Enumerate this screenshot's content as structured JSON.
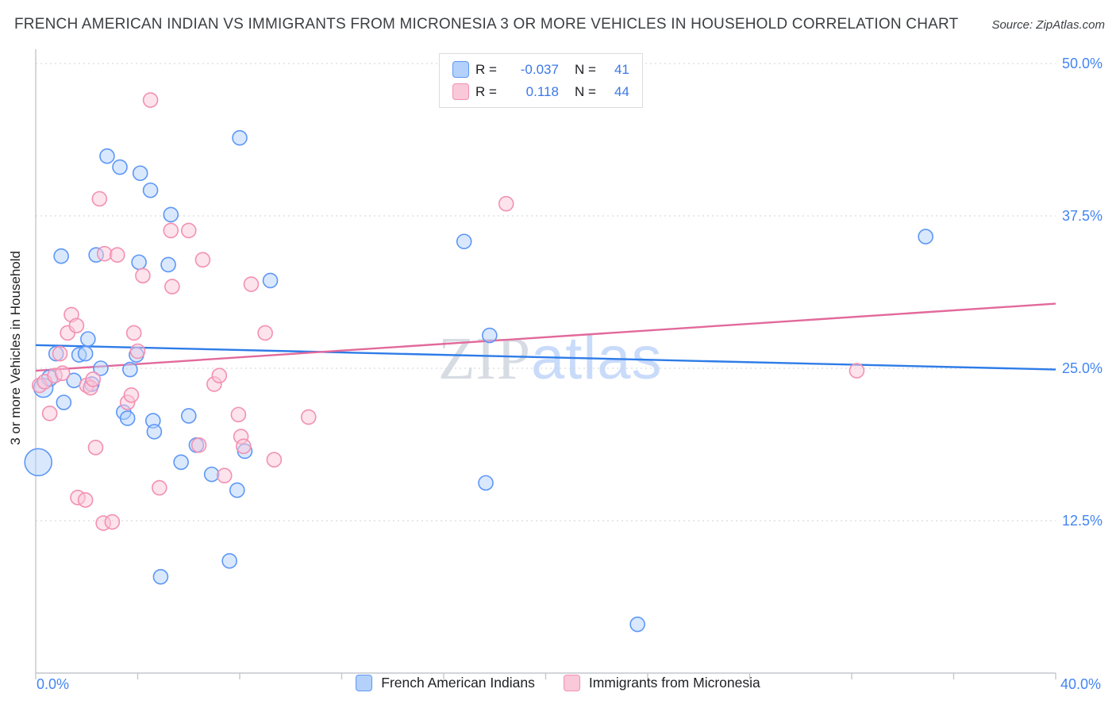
{
  "title": "FRENCH AMERICAN INDIAN VS IMMIGRANTS FROM MICRONESIA 3 OR MORE VEHICLES IN HOUSEHOLD CORRELATION CHART",
  "source": "Source: ZipAtlas.com",
  "watermark": {
    "zip": "ZIP",
    "atlas": "atlas"
  },
  "y_axis": {
    "label": "3 or more Vehicles in Household",
    "ticks": [
      "50.0%",
      "37.5%",
      "25.0%",
      "12.5%"
    ]
  },
  "x_axis": {
    "min_label": "0.0%",
    "max_label": "40.0%"
  },
  "legend_box": {
    "rows": [
      {
        "r_label": "R =",
        "r_value": "-0.037",
        "n_label": "N =",
        "n_value": "41"
      },
      {
        "r_label": "R =",
        "r_value": "0.118",
        "n_label": "N =",
        "n_value": "44"
      }
    ]
  },
  "bottom_legend": {
    "items": [
      {
        "label": "French American Indians"
      },
      {
        "label": "Immigrants from Micronesia"
      }
    ]
  },
  "colors": {
    "blue_fill": "#b3d1fb",
    "blue_stroke": "#5e97f6",
    "blue_line": "#2e7ce8",
    "pink_fill": "#f9c8d9",
    "pink_stroke": "#f291b2",
    "pink_line": "#e2699b",
    "tick_label": "#4285f4",
    "grid": "#cfd2d6",
    "axis": "#c4c7cb"
  },
  "chart_data": {
    "type": "scatter",
    "title": "French American Indian vs Immigrants from Micronesia 3 or More Vehicles in Household Correlation",
    "xlabel": "",
    "ylabel": "3 or more Vehicles in Household",
    "xlim": [
      0,
      40
    ],
    "ylim": [
      0,
      50
    ],
    "x_tick_step": 4,
    "y_gridlines": [
      12.5,
      25,
      37.5,
      50
    ],
    "legend_position": "bottom",
    "grid": "dotted-horizontal",
    "series": [
      {
        "name": "French American Indians",
        "R": -0.037,
        "N": 41,
        "trend": {
          "x1": 0,
          "y1": 26.9,
          "x2": 40,
          "y2": 24.9
        },
        "points": [
          [
            0.1,
            17.3,
            17
          ],
          [
            0.3,
            23.4,
            12
          ],
          [
            0.55,
            24.2,
            10
          ],
          [
            0.8,
            26.2
          ],
          [
            1.0,
            34.2
          ],
          [
            1.1,
            22.2
          ],
          [
            1.5,
            24.0
          ],
          [
            1.7,
            26.1
          ],
          [
            1.95,
            26.2
          ],
          [
            2.05,
            27.4
          ],
          [
            2.2,
            23.7
          ],
          [
            2.37,
            34.3
          ],
          [
            2.55,
            25.0
          ],
          [
            2.8,
            42.4
          ],
          [
            3.3,
            41.5
          ],
          [
            3.45,
            21.4
          ],
          [
            3.7,
            24.9
          ],
          [
            4.1,
            41.0
          ],
          [
            4.5,
            39.6
          ],
          [
            3.95,
            26.1
          ],
          [
            4.05,
            33.7
          ],
          [
            4.6,
            20.7
          ],
          [
            5.3,
            37.6
          ],
          [
            5.2,
            33.5
          ],
          [
            4.9,
            7.9
          ],
          [
            3.6,
            20.9
          ],
          [
            5.7,
            17.3
          ],
          [
            6.0,
            21.1
          ],
          [
            4.65,
            19.8
          ],
          [
            6.9,
            16.3
          ],
          [
            7.6,
            9.2
          ],
          [
            7.9,
            15.0
          ],
          [
            8.0,
            43.9
          ],
          [
            8.2,
            18.2
          ],
          [
            9.2,
            32.2
          ],
          [
            16.8,
            35.4
          ],
          [
            17.8,
            27.7
          ],
          [
            17.65,
            15.6
          ],
          [
            23.6,
            4.0
          ],
          [
            34.9,
            35.8
          ],
          [
            6.3,
            18.7
          ]
        ]
      },
      {
        "name": "Immigrants from Micronesia",
        "R": 0.118,
        "N": 44,
        "trend": {
          "x1": 0,
          "y1": 24.8,
          "x2": 40,
          "y2": 30.3
        },
        "points": [
          [
            0.15,
            23.6
          ],
          [
            0.35,
            23.9
          ],
          [
            0.55,
            21.3
          ],
          [
            0.75,
            24.4
          ],
          [
            0.95,
            26.2
          ],
          [
            1.05,
            24.6
          ],
          [
            1.25,
            27.9
          ],
          [
            1.4,
            29.4
          ],
          [
            1.6,
            28.5
          ],
          [
            1.65,
            14.4
          ],
          [
            1.95,
            14.2
          ],
          [
            2.0,
            23.6
          ],
          [
            2.15,
            23.4
          ],
          [
            2.35,
            18.5
          ],
          [
            2.5,
            38.9
          ],
          [
            2.65,
            12.3
          ],
          [
            2.7,
            34.4
          ],
          [
            3.0,
            12.4
          ],
          [
            3.2,
            34.3
          ],
          [
            3.6,
            22.2
          ],
          [
            3.75,
            22.8
          ],
          [
            3.85,
            27.9
          ],
          [
            4.2,
            32.6
          ],
          [
            4.5,
            47.0
          ],
          [
            4.85,
            15.2
          ],
          [
            5.3,
            36.3
          ],
          [
            5.35,
            31.7
          ],
          [
            6.0,
            36.3
          ],
          [
            6.55,
            33.9
          ],
          [
            7.0,
            23.7
          ],
          [
            7.2,
            24.4
          ],
          [
            7.4,
            16.2
          ],
          [
            7.95,
            21.2
          ],
          [
            8.05,
            19.4
          ],
          [
            8.15,
            18.6
          ],
          [
            8.45,
            31.9
          ],
          [
            9.0,
            27.9
          ],
          [
            9.35,
            17.5
          ],
          [
            10.7,
            21.0
          ],
          [
            18.45,
            38.5
          ],
          [
            32.2,
            24.8
          ],
          [
            2.25,
            24.1
          ],
          [
            6.4,
            18.7
          ],
          [
            4.0,
            26.4
          ]
        ]
      }
    ]
  }
}
